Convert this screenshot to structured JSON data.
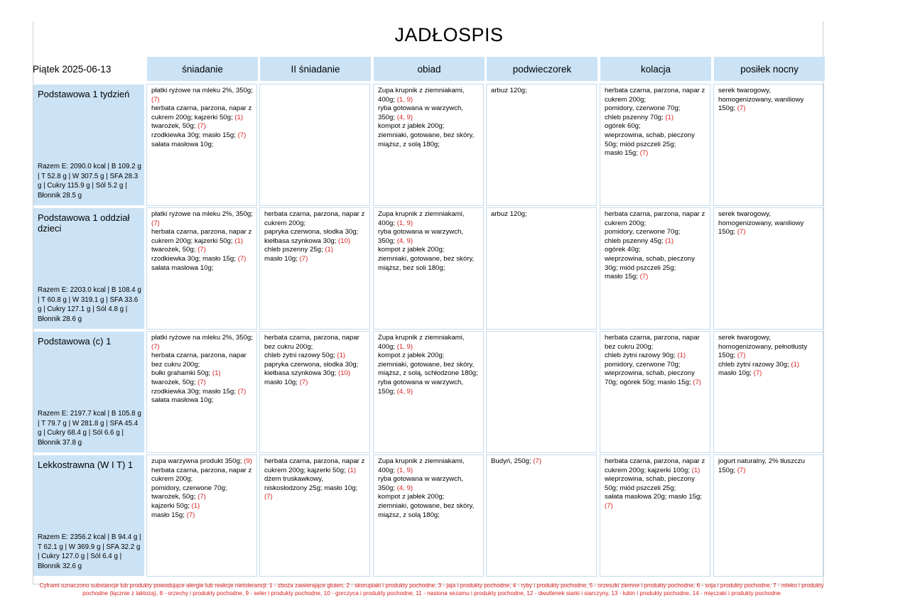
{
  "title": "JADŁOSPIS",
  "date": "Piątek 2025-06-13",
  "columns": [
    "śniadanie",
    "II śniadanie",
    "obiad",
    "podwieczorek",
    "kolacja",
    "posiłek nocny"
  ],
  "rows": [
    {
      "name": "Podstawowa 1 tydzień",
      "summary": "Razem E: 2090.0 kcal | B 109.2 g | T 52.8 g | W 307.5 g | SFA 28.3 g | Cukry 115.9 g | Sól 5.2 g | Błonnik 28.5 g",
      "cells": [
        [
          [
            "płatki ryżowe na mleku 2%, 350g;",
            "(7)"
          ],
          [
            "herbata czarna, parzona, napar z cukrem 200g; kajzerki 50g;",
            "(1)"
          ],
          [
            "twarożek, 50g;",
            "(7)"
          ],
          [
            "rzodkiewka 30g; masło 15g;",
            "(7)"
          ],
          [
            "sałata masłowa 10g;",
            ""
          ]
        ],
        [],
        [
          [
            "Zupa krupnik z ziemniakami, 400g;",
            "(1, 9)"
          ],
          [
            "ryba gotowana w warzywch, 350g;",
            "(4, 9)"
          ],
          [
            "kompot z jabłek 200g;",
            ""
          ],
          [
            "ziemniaki, gotowane, bez skóry, miąższ, z solą 180g;",
            ""
          ]
        ],
        [
          [
            "arbuz 120g;",
            ""
          ]
        ],
        [
          [
            "herbata czarna, parzona, napar z cukrem 200g;",
            ""
          ],
          [
            "pomidory, czerwone 70g;",
            ""
          ],
          [
            "chleb pszenny 70g;",
            "(1)"
          ],
          [
            "ogórek 60g;",
            ""
          ],
          [
            "wieprzowina, schab, pieczony 50g; miód pszczeli 25g;",
            ""
          ],
          [
            "masło 15g;",
            "(7)"
          ]
        ],
        [
          [
            "serek twarogowy, homogenizowany, waniliowy 150g;",
            "(7)"
          ]
        ]
      ]
    },
    {
      "name": "Podstawowa 1 oddział dzieci",
      "summary": "Razem E: 2203.0 kcal | B 108.4 g | T 60.8 g | W 319.1 g | SFA 33.6 g | Cukry 127.1 g | Sól 4.8 g | Błonnik 28.6 g",
      "cells": [
        [
          [
            "płatki ryżowe na mleku 2%, 350g;",
            "(7)"
          ],
          [
            "herbata czarna, parzona, napar z cukrem 200g; kajzerki 50g;",
            "(1)"
          ],
          [
            "twarożek, 50g;",
            "(7)"
          ],
          [
            "rzodkiewka 30g; masło 15g;",
            "(7)"
          ],
          [
            "sałata masłowa 10g;",
            ""
          ]
        ],
        [
          [
            "herbata czarna, parzona, napar z cukrem 200g;",
            ""
          ],
          [
            "papryka czerwona, słodka 30g;",
            ""
          ],
          [
            "kiełbasa szynkowa 30g;",
            "(10)"
          ],
          [
            "chleb pszenny 25g;",
            "(1)"
          ],
          [
            "masło 10g;",
            "(7)"
          ]
        ],
        [
          [
            "Zupa krupnik z ziemniakami, 400g;",
            "(1, 9)"
          ],
          [
            "ryba gotowana w warzywch, 350g;",
            "(4, 9)"
          ],
          [
            "kompot z jabłek 200g;",
            ""
          ],
          [
            "ziemniaki, gotowane, bez skóry, miąższ, bez soli 180g;",
            ""
          ]
        ],
        [
          [
            "arbuz 120g;",
            ""
          ]
        ],
        [
          [
            "herbata czarna, parzona, napar z cukrem 200g;",
            ""
          ],
          [
            "pomidory, czerwone 70g;",
            ""
          ],
          [
            "chleb pszenny 45g;",
            "(1)"
          ],
          [
            "ogórek 40g;",
            ""
          ],
          [
            "wieprzowina, schab, pieczony 30g; miód pszczeli 25g;",
            ""
          ],
          [
            "masło 15g;",
            "(7)"
          ]
        ],
        [
          [
            "serek twarogowy, homogenizowany, waniliowy 150g;",
            "(7)"
          ]
        ]
      ]
    },
    {
      "name": "Podstawowa (c) 1",
      "summary": "Razem E: 2197.7 kcal | B 105.8 g | T 79.7 g | W 281.8 g | SFA 45.4 g | Cukry 68.4 g | Sól 6.6 g | Błonnik 37.8 g",
      "cells": [
        [
          [
            "płatki ryżowe na mleku 2%, 350g;",
            "(7)"
          ],
          [
            "herbata czarna, parzona, napar bez cukru 200g;",
            ""
          ],
          [
            "bułki grahamki 50g;",
            "(1)"
          ],
          [
            "twarożek, 50g;",
            "(7)"
          ],
          [
            "rzodkiewka 30g; masło 15g;",
            "(7)"
          ],
          [
            "sałata masłowa 10g;",
            ""
          ]
        ],
        [
          [
            "herbata czarna, parzona, napar bez cukru 200g;",
            ""
          ],
          [
            "chleb żytni razowy 50g;",
            "(1)"
          ],
          [
            "papryka czerwona, słodka 30g;",
            ""
          ],
          [
            "kiełbasa szynkowa 30g;",
            "(10)"
          ],
          [
            "masło 10g;",
            "(7)"
          ]
        ],
        [
          [
            "Zupa krupnik z ziemniakami, 400g;",
            "(1, 9)"
          ],
          [
            "kompot z jabłek 200g;",
            ""
          ],
          [
            "ziemniaki, gotowane, bez skóry, miąższ, z solą, schłodzone 180g;",
            ""
          ],
          [
            "ryba gotowana w warzywch, 150g;",
            "(4, 9)"
          ]
        ],
        [],
        [
          [
            "herbata czarna, parzona, napar bez cukru 200g;",
            ""
          ],
          [
            "chleb żytni razowy 90g;",
            "(1)"
          ],
          [
            "pomidory, czerwone 70g;",
            ""
          ],
          [
            "wieprzowina, schab, pieczony 70g; ogórek 50g; masło 15g;",
            "(7)"
          ]
        ],
        [
          [
            "serek twarogowy, homogenizowany, pełnotłusty 150g;",
            "(7)"
          ],
          [
            "chleb żytni razowy 30g;",
            "(1)"
          ],
          [
            "masło 10g;",
            "(7)"
          ]
        ]
      ]
    },
    {
      "name": "Lekkostrawna (W I T) 1",
      "summary": "Razem E: 2356.2 kcal | B 94.4 g | T 62.1 g | W 369.9 g | SFA 32.2 g | Cukry 127.0 g | Sól 6.4 g | Błonnik 32.6 g",
      "cells": [
        [
          [
            "zupa warzywna produkt 350g;",
            "(9)"
          ],
          [
            "herbata czarna, parzona, napar z cukrem 200g;",
            ""
          ],
          [
            "pomidory, czerwone 70g;",
            ""
          ],
          [
            "twarożek, 50g;",
            "(7)"
          ],
          [
            "kajzerki 50g;",
            "(1)"
          ],
          [
            "masło 15g;",
            "(7)"
          ]
        ],
        [
          [
            "herbata czarna, parzona, napar z cukrem 200g; kajzerki 50g;",
            "(1)"
          ],
          [
            "dżem truskawkowy, niskosłodzony 25g; masło 10g;",
            "(7)"
          ]
        ],
        [
          [
            "Zupa krupnik z ziemniakami, 400g;",
            "(1, 9)"
          ],
          [
            "ryba gotowana w warzywch, 350g;",
            "(4, 9)"
          ],
          [
            "kompot z jabłek 200g;",
            ""
          ],
          [
            "ziemniaki, gotowane, bez skóry, miąższ, z solą 180g;",
            ""
          ]
        ],
        [
          [
            "Budyń, 250g;",
            "(7)"
          ]
        ],
        [
          [
            "herbata czarna, parzona, napar z cukrem 200g; kajzerki 100g;",
            "(1)"
          ],
          [
            "wieprzowina, schab, pieczony 50g; miód pszczeli 25g;",
            ""
          ],
          [
            "sałata masłowa 20g; masło 15g;",
            "(7)"
          ]
        ],
        [
          [
            "jogurt naturalny, 2% tłuszczu 150g;",
            "(7)"
          ]
        ]
      ]
    }
  ],
  "footer": "Cyframi oznaczono substancje lub produkty powodujące alergie lub reakcje nietolerancji: 1 - zboża zawierające gluten, 2 - skorupiaki i produkty pochodne, 3 - jaja i produkty pochodne, 4 - ryby i produkty pochodne, 5 - orzeszki ziemne i produkty pochodne, 6 - soja i produkty pochodne, 7 - mleko i produkty pochodne (łącznie z laktozą), 8 - orzechy i produkty pochodne, 9 - seler i produkty pochodne, 10 - gorczyca i produkty pochodne, 11 - nasiona sezamu i produkty pochodne, 12 - dwutlenek siarki i siarczyny, 13 - łubin i produkty pochodne, 14 - mięczaki i produkty pochodne"
}
